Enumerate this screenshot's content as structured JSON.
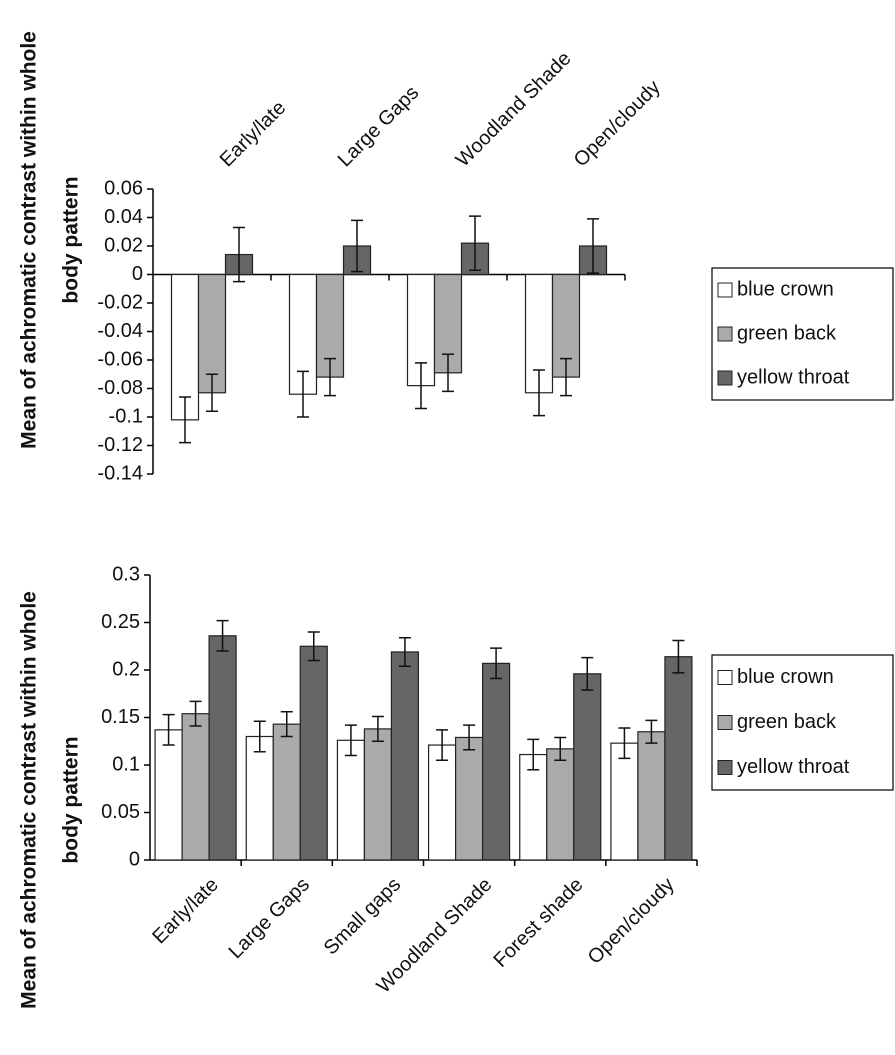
{
  "chart_data": [
    {
      "type": "bar",
      "ylabel": [
        "Mean of achromatic contrast within whole",
        "body pattern"
      ],
      "categories": [
        "Early/late",
        "Large Gaps",
        "Woodland Shade",
        "Open/cloudy"
      ],
      "series": [
        {
          "name": "blue crown",
          "color": "#ffffff",
          "values": [
            -0.102,
            -0.084,
            -0.078,
            -0.083
          ],
          "errors": [
            0.016,
            0.016,
            0.016,
            0.016
          ]
        },
        {
          "name": "green back",
          "color": "#aaaaaa",
          "values": [
            -0.083,
            -0.072,
            -0.069,
            -0.072
          ],
          "errors": [
            0.013,
            0.013,
            0.013,
            0.013
          ]
        },
        {
          "name": "yellow throat",
          "color": "#666666",
          "values": [
            0.014,
            0.02,
            0.022,
            0.02
          ],
          "errors": [
            0.019,
            0.018,
            0.019,
            0.019
          ]
        }
      ],
      "ylim": [
        -0.14,
        0.06
      ],
      "yticks": [
        -0.14,
        -0.12,
        -0.1,
        -0.08,
        -0.06,
        -0.04,
        -0.02,
        0,
        0.02,
        0.04,
        0.06
      ],
      "legend": "right"
    },
    {
      "type": "bar",
      "ylabel": [
        "Mean of achromatic contrast within whole",
        "body pattern"
      ],
      "categories": [
        "Early/late",
        "Large Gaps",
        "Small gaps",
        "Woodland Shade",
        "Forest shade",
        "Open/cloudy"
      ],
      "series": [
        {
          "name": "blue crown",
          "color": "#ffffff",
          "values": [
            0.137,
            0.13,
            0.126,
            0.121,
            0.111,
            0.123
          ],
          "errors": [
            0.016,
            0.016,
            0.016,
            0.016,
            0.016,
            0.016
          ]
        },
        {
          "name": "green back",
          "color": "#aaaaaa",
          "values": [
            0.154,
            0.143,
            0.138,
            0.129,
            0.117,
            0.135
          ],
          "errors": [
            0.013,
            0.013,
            0.013,
            0.013,
            0.012,
            0.012
          ]
        },
        {
          "name": "yellow throat",
          "color": "#666666",
          "values": [
            0.236,
            0.225,
            0.219,
            0.207,
            0.196,
            0.214
          ],
          "errors": [
            0.016,
            0.015,
            0.015,
            0.016,
            0.017,
            0.017
          ]
        }
      ],
      "ylim": [
        0,
        0.3
      ],
      "yticks": [
        0,
        0.05,
        0.1,
        0.15,
        0.2,
        0.25,
        0.3
      ],
      "legend": "right"
    }
  ]
}
